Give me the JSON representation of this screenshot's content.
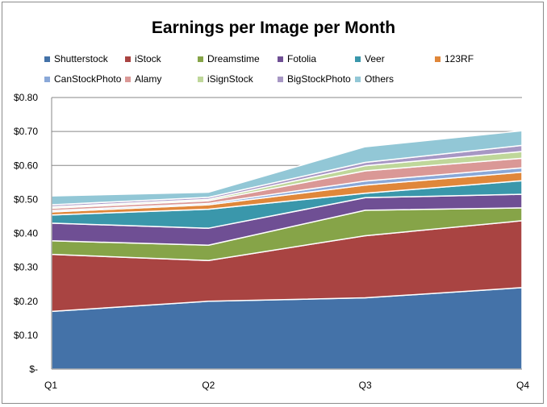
{
  "chart_data": {
    "type": "area",
    "stacked": true,
    "title": "Earnings per Image per Month",
    "categories": [
      "Q1",
      "Q2",
      "Q3",
      "Q4"
    ],
    "ylim": [
      0,
      0.8
    ],
    "yticks": [
      0,
      0.1,
      0.2,
      0.3,
      0.4,
      0.5,
      0.6,
      0.7,
      0.8
    ],
    "ytick_labels": [
      "$-",
      "$0.10",
      "$0.20",
      "$0.30",
      "$0.40",
      "$0.50",
      "$0.60",
      "$0.70",
      "$0.80"
    ],
    "grid": true,
    "legend_position": "top",
    "series": [
      {
        "name": "Shutterstock",
        "color": "#4472a8",
        "values": [
          0.17,
          0.2,
          0.21,
          0.24
        ]
      },
      {
        "name": "iStock",
        "color": "#a94442",
        "values": [
          0.168,
          0.12,
          0.183,
          0.197
        ]
      },
      {
        "name": "Dreamstime",
        "color": "#86a448",
        "values": [
          0.04,
          0.045,
          0.075,
          0.038
        ]
      },
      {
        "name": "Fotolia",
        "color": "#6f4f94",
        "values": [
          0.052,
          0.05,
          0.037,
          0.04
        ]
      },
      {
        "name": "Veer",
        "color": "#3a97ab",
        "values": [
          0.024,
          0.056,
          0.013,
          0.04
        ]
      },
      {
        "name": "123RF",
        "color": "#e0873a",
        "values": [
          0.009,
          0.013,
          0.024,
          0.025
        ]
      },
      {
        "name": "CanStockPhoto",
        "color": "#8aa8d8",
        "values": [
          0.004,
          0.004,
          0.012,
          0.013
        ]
      },
      {
        "name": "Alamy",
        "color": "#da9896",
        "values": [
          0.007,
          0.008,
          0.03,
          0.028
        ]
      },
      {
        "name": "iSignStock",
        "color": "#bfd79a",
        "values": [
          0.004,
          0.004,
          0.015,
          0.02
        ]
      },
      {
        "name": "BigStockPhoto",
        "color": "#a797c4",
        "values": [
          0.006,
          0.006,
          0.01,
          0.018
        ]
      },
      {
        "name": "Others",
        "color": "#92c7d6",
        "values": [
          0.026,
          0.015,
          0.046,
          0.043
        ]
      }
    ]
  }
}
